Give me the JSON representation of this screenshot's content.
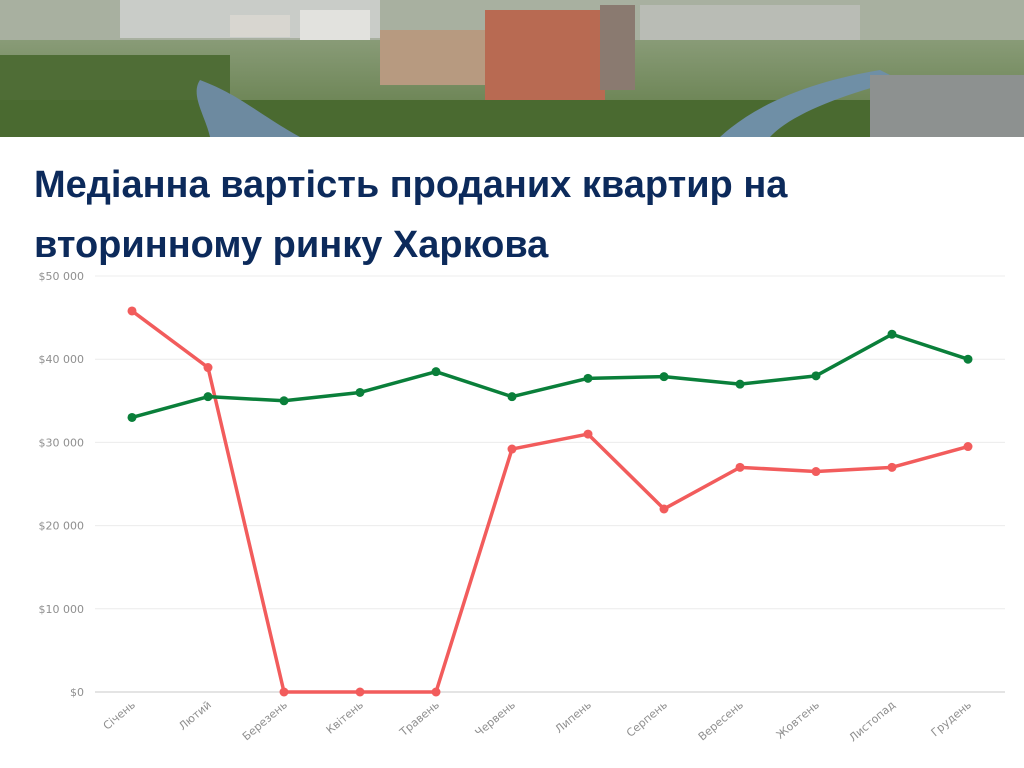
{
  "header": {
    "title": "Медіанна вартість проданих квартир на вторинному ринку Харкова"
  },
  "chart_data": {
    "type": "line",
    "title": "Медіанна вартість проданих квартир на вторинному ринку Харкова",
    "xlabel": "",
    "ylabel": "",
    "categories": [
      "Січень",
      "Лютий",
      "Березень",
      "Квітень",
      "Травень",
      "Червень",
      "Липень",
      "Серпень",
      "Вересень",
      "Жовтень",
      "Листопад",
      "Грудень"
    ],
    "y_ticks": [
      "$0",
      "$10 000",
      "$20 000",
      "$30 000",
      "$40 000",
      "$50 000"
    ],
    "y_tick_values": [
      0,
      10000,
      20000,
      30000,
      40000,
      50000
    ],
    "ylim": [
      0,
      50000
    ],
    "grid": true,
    "legend": "none",
    "series": [
      {
        "color": "#0a7f3a",
        "values": [
          33000,
          35500,
          35000,
          36000,
          38500,
          35500,
          37700,
          37900,
          37000,
          38000,
          43000,
          40000
        ]
      },
      {
        "color": "#f25c5c",
        "values": [
          45800,
          39000,
          0,
          0,
          0,
          29200,
          31000,
          22000,
          27000,
          26500,
          27000,
          29500
        ]
      }
    ]
  }
}
